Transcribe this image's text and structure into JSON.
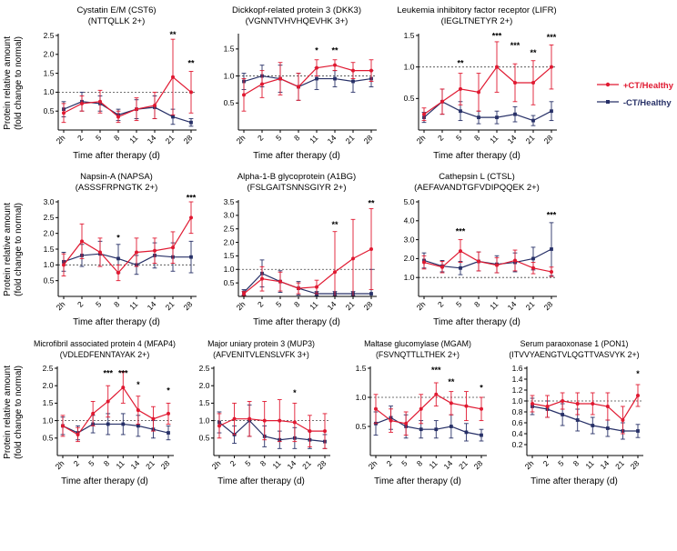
{
  "figure": {
    "ylabel_line1": "Protein relative amount",
    "ylabel_line2": "(fold change to normal)",
    "xlabel": "Time after therapy (d)",
    "categories": [
      "2h",
      "2",
      "5",
      "8",
      "11",
      "14",
      "21",
      "28"
    ],
    "colors": {
      "ct_plus": "#e01931",
      "ct_minus": "#273067",
      "axis": "#000000",
      "dashed_line": "#444444"
    },
    "legend": [
      {
        "label": "+CT/Healthy",
        "color": "#e01931",
        "marker": "circle"
      },
      {
        "label": "-CT/Healthy",
        "color": "#273067",
        "marker": "square"
      }
    ]
  },
  "chart_data": [
    {
      "type": "line",
      "title": "Cystatin E/M (CST6)",
      "subtitle": "(NTTQLLK 2+)",
      "categories": [
        "2h",
        "2",
        "5",
        "8",
        "11",
        "14",
        "21",
        "28"
      ],
      "ylim": [
        0,
        2.5
      ],
      "yticks": [
        0.5,
        1.0,
        1.5,
        2.0,
        2.5
      ],
      "dashed_y": 1.0,
      "series": [
        {
          "name": "+CT/Healthy",
          "values": [
            0.45,
            0.7,
            0.75,
            0.35,
            0.55,
            0.65,
            1.4,
            1.0
          ],
          "err": [
            0.25,
            0.2,
            0.3,
            0.15,
            0.3,
            0.35,
            1.0,
            0.55
          ]
        },
        {
          "name": "-CT/Healthy",
          "values": [
            0.55,
            0.75,
            0.7,
            0.4,
            0.55,
            0.6,
            0.35,
            0.2
          ],
          "err": [
            0.2,
            0.25,
            0.2,
            0.15,
            0.25,
            0.3,
            0.2,
            0.1
          ]
        }
      ],
      "annotations": [
        {
          "i": 6,
          "text": "**",
          "y": 2.45
        },
        {
          "i": 7,
          "text": "**",
          "y": 1.7
        }
      ]
    },
    {
      "type": "line",
      "title": "Dickkopf-related protein 3 (DKK3)",
      "subtitle": "(VGNNTVHVHQEVHK 3+)",
      "categories": [
        "2h",
        "2",
        "5",
        "8",
        "11",
        "14",
        "21",
        "28"
      ],
      "ylim": [
        0,
        1.75
      ],
      "yticks": [
        0.5,
        1.0,
        1.5
      ],
      "dashed_y": 1.0,
      "series": [
        {
          "name": "+CT/Healthy",
          "values": [
            0.65,
            0.85,
            0.95,
            0.8,
            1.15,
            1.2,
            1.1,
            1.1
          ],
          "err": [
            0.3,
            0.25,
            0.3,
            0.25,
            0.15,
            0.1,
            0.15,
            0.2
          ]
        },
        {
          "name": "-CT/Healthy",
          "values": [
            0.9,
            1.0,
            0.95,
            0.8,
            0.95,
            0.95,
            0.9,
            0.95
          ],
          "err": [
            0.15,
            0.2,
            0.25,
            0.25,
            0.2,
            0.15,
            0.2,
            0.15
          ]
        }
      ],
      "annotations": [
        {
          "i": 4,
          "text": "*",
          "y": 1.42
        },
        {
          "i": 5,
          "text": "**",
          "y": 1.42
        }
      ]
    },
    {
      "type": "line",
      "title": "Leukemia inhibitory factor receptor (LIFR)",
      "subtitle": "(IEGLTNETYR 2+)",
      "categories": [
        "2h",
        "2",
        "5",
        "8",
        "11",
        "14",
        "21",
        "28"
      ],
      "ylim": [
        0,
        1.5
      ],
      "yticks": [
        0.5,
        1.0,
        1.5
      ],
      "dashed_y": 1.0,
      "series": [
        {
          "name": "+CT/Healthy",
          "values": [
            0.25,
            0.45,
            0.65,
            0.6,
            1.0,
            0.75,
            0.75,
            1.0
          ],
          "err": [
            0.1,
            0.2,
            0.25,
            0.3,
            0.4,
            0.3,
            0.35,
            0.35
          ]
        },
        {
          "name": "-CT/Healthy",
          "values": [
            0.2,
            0.45,
            0.3,
            0.2,
            0.2,
            0.25,
            0.15,
            0.3
          ],
          "err": [
            0.08,
            0.2,
            0.15,
            0.1,
            0.1,
            0.12,
            0.08,
            0.15
          ]
        }
      ],
      "annotations": [
        {
          "i": 2,
          "text": "**",
          "y": 1.02
        },
        {
          "i": 4,
          "text": "***",
          "y": 1.45
        },
        {
          "i": 5,
          "text": "***",
          "y": 1.3
        },
        {
          "i": 6,
          "text": "**",
          "y": 1.18
        },
        {
          "i": 7,
          "text": "***",
          "y": 1.43
        }
      ]
    },
    {
      "type": "line",
      "title": "Napsin-A (NAPSA)",
      "subtitle": "(ASSSFRPNGTK 2+)",
      "categories": [
        "2h",
        "2",
        "5",
        "8",
        "11",
        "14",
        "21",
        "28"
      ],
      "ylim": [
        0,
        3.0
      ],
      "yticks": [
        0.5,
        1.0,
        1.5,
        2.0,
        2.5,
        3.0
      ],
      "dashed_y": 1.0,
      "series": [
        {
          "name": "+CT/Healthy",
          "values": [
            1.0,
            1.75,
            1.4,
            0.75,
            1.4,
            1.45,
            1.55,
            2.5
          ],
          "err": [
            0.35,
            0.55,
            0.45,
            0.25,
            0.45,
            0.4,
            0.5,
            0.5
          ]
        },
        {
          "name": "-CT/Healthy",
          "values": [
            1.1,
            1.3,
            1.35,
            1.2,
            1.0,
            1.3,
            1.25,
            1.25
          ],
          "err": [
            0.3,
            0.35,
            0.4,
            0.45,
            0.3,
            0.4,
            0.45,
            0.5
          ]
        }
      ],
      "annotations": [
        {
          "i": 3,
          "text": "*",
          "y": 1.78
        },
        {
          "i": 7,
          "text": "***",
          "y": 3.05
        }
      ]
    },
    {
      "type": "line",
      "title": "Alpha-1-B glycoprotein (A1BG)",
      "subtitle": "(FSLGAITSNNSGIYR 2+)",
      "categories": [
        "2h",
        "2",
        "5",
        "8",
        "11",
        "14",
        "21",
        "28"
      ],
      "ylim": [
        0,
        3.5
      ],
      "yticks": [
        0.5,
        1.0,
        1.5,
        2.0,
        2.5,
        3.0,
        3.5
      ],
      "dashed_y": 1.0,
      "series": [
        {
          "name": "+CT/Healthy",
          "values": [
            0.1,
            0.65,
            0.55,
            0.3,
            0.35,
            0.9,
            1.4,
            1.75
          ],
          "err": [
            0.08,
            0.45,
            0.35,
            0.2,
            0.25,
            1.5,
            1.45,
            1.5
          ]
        },
        {
          "name": "-CT/Healthy",
          "values": [
            0.15,
            0.85,
            0.55,
            0.3,
            0.1,
            0.1,
            0.1,
            0.1
          ],
          "err": [
            0.1,
            0.5,
            0.4,
            0.25,
            0.08,
            0.08,
            0.08,
            0.9
          ]
        }
      ],
      "annotations": [
        {
          "i": 5,
          "text": "**",
          "y": 2.55
        },
        {
          "i": 7,
          "text": "**",
          "y": 3.35
        }
      ]
    },
    {
      "type": "line",
      "title": "Cathepsin L (CTSL)",
      "subtitle": "(AEFAVANDTGFVDIPQQEK 2+)",
      "categories": [
        "2h",
        "2",
        "5",
        "8",
        "11",
        "14",
        "21",
        "28"
      ],
      "ylim": [
        0,
        5.0
      ],
      "yticks": [
        1.0,
        2.0,
        3.0,
        4.0,
        5.0
      ],
      "dashed_y": 1.0,
      "series": [
        {
          "name": "+CT/Healthy",
          "values": [
            1.8,
            1.55,
            2.4,
            1.85,
            1.65,
            1.9,
            1.5,
            1.3
          ],
          "err": [
            0.35,
            0.3,
            0.6,
            0.5,
            0.4,
            0.55,
            0.3,
            0.25
          ]
        },
        {
          "name": "-CT/Healthy",
          "values": [
            1.9,
            1.6,
            1.5,
            1.85,
            1.7,
            1.8,
            2.0,
            2.5
          ],
          "err": [
            0.4,
            0.3,
            0.35,
            0.5,
            0.45,
            0.5,
            0.6,
            1.4
          ]
        }
      ],
      "annotations": [
        {
          "i": 2,
          "text": "***",
          "y": 3.3
        },
        {
          "i": 7,
          "text": "***",
          "y": 4.15
        }
      ]
    },
    {
      "type": "line",
      "title": "Microfibril associated protein 4 (MFAP4)",
      "subtitle": "(VDLEDFENNTAYAK 2+)",
      "categories": [
        "2h",
        "2",
        "5",
        "8",
        "11",
        "14",
        "21",
        "28"
      ],
      "ylim": [
        0,
        2.5
      ],
      "yticks": [
        0.5,
        1.0,
        1.5,
        2.0,
        2.5
      ],
      "dashed_y": 1.0,
      "series": [
        {
          "name": "+CT/Healthy",
          "values": [
            0.85,
            0.6,
            1.2,
            1.55,
            1.95,
            1.3,
            1.05,
            1.2
          ],
          "err": [
            0.3,
            0.2,
            0.35,
            0.45,
            0.45,
            0.4,
            0.35,
            0.3
          ]
        },
        {
          "name": "-CT/Healthy",
          "values": [
            0.85,
            0.65,
            0.9,
            0.9,
            0.9,
            0.85,
            0.75,
            0.65
          ],
          "err": [
            0.25,
            0.2,
            0.25,
            0.3,
            0.3,
            0.3,
            0.25,
            0.2
          ]
        }
      ],
      "annotations": [
        {
          "i": 3,
          "text": "***",
          "y": 2.28
        },
        {
          "i": 4,
          "text": "***",
          "y": 2.28
        },
        {
          "i": 5,
          "text": "*",
          "y": 1.95
        },
        {
          "i": 7,
          "text": "*",
          "y": 1.78
        }
      ]
    },
    {
      "type": "line",
      "title": "Major uniary protein 3 (MUP3)",
      "subtitle": "(AFVENITVLENSLVFK 3+)",
      "categories": [
        "2h",
        "2",
        "5",
        "8",
        "11",
        "14",
        "21",
        "28"
      ],
      "ylim": [
        0,
        2.5
      ],
      "yticks": [
        0.5,
        1.0,
        1.5,
        2.0,
        2.5
      ],
      "dashed_y": 1.0,
      "series": [
        {
          "name": "+CT/Healthy",
          "values": [
            0.85,
            1.05,
            1.05,
            1.0,
            1.0,
            0.95,
            0.7,
            0.7
          ],
          "err": [
            0.35,
            0.45,
            0.5,
            0.55,
            0.6,
            0.55,
            0.45,
            0.5
          ]
        },
        {
          "name": "-CT/Healthy",
          "values": [
            0.95,
            0.6,
            1.0,
            0.55,
            0.45,
            0.5,
            0.45,
            0.4
          ],
          "err": [
            0.3,
            0.25,
            0.45,
            0.3,
            0.25,
            0.3,
            0.25,
            0.2
          ]
        }
      ],
      "annotations": [
        {
          "i": 5,
          "text": "*",
          "y": 1.72
        }
      ]
    },
    {
      "type": "line",
      "title": "Maltase glucomylase (MGAM)",
      "subtitle": "(FSVNQTTLLTHEK 2+)",
      "categories": [
        "2h",
        "2",
        "5",
        "8",
        "11",
        "14",
        "21",
        "28"
      ],
      "ylim": [
        0,
        1.5
      ],
      "yticks": [
        0.5,
        1.0,
        1.5
      ],
      "dashed_y": 1.0,
      "series": [
        {
          "name": "+CT/Healthy",
          "values": [
            0.8,
            0.6,
            0.55,
            0.8,
            1.05,
            0.9,
            0.85,
            0.8
          ],
          "err": [
            0.25,
            0.2,
            0.2,
            0.25,
            0.2,
            0.2,
            0.25,
            0.2
          ]
        },
        {
          "name": "-CT/Healthy",
          "values": [
            0.55,
            0.65,
            0.5,
            0.45,
            0.45,
            0.5,
            0.4,
            0.35
          ],
          "err": [
            0.2,
            0.2,
            0.2,
            0.15,
            0.15,
            0.2,
            0.15,
            0.1
          ]
        }
      ],
      "annotations": [
        {
          "i": 4,
          "text": "***",
          "y": 1.42
        },
        {
          "i": 5,
          "text": "**",
          "y": 1.22
        },
        {
          "i": 7,
          "text": "*",
          "y": 1.12
        }
      ]
    },
    {
      "type": "line",
      "title": "Serum paraoxonase 1 (PON1)",
      "subtitle": "(ITVVYAENGTVLQGTTVASVYK 2+)",
      "categories": [
        "2h",
        "2",
        "5",
        "8",
        "11",
        "14",
        "21",
        "28"
      ],
      "ylim": [
        0,
        1.6
      ],
      "yticks": [
        0.2,
        0.4,
        0.6,
        0.8,
        1.0,
        1.2,
        1.4,
        1.6
      ],
      "dashed_y": 1.0,
      "series": [
        {
          "name": "+CT/Healthy",
          "values": [
            0.95,
            0.9,
            1.0,
            0.95,
            0.95,
            0.9,
            0.65,
            1.1
          ],
          "err": [
            0.15,
            0.2,
            0.15,
            0.2,
            0.2,
            0.25,
            0.25,
            0.2
          ]
        },
        {
          "name": "-CT/Healthy",
          "values": [
            0.9,
            0.85,
            0.75,
            0.65,
            0.55,
            0.5,
            0.45,
            0.45
          ],
          "err": [
            0.15,
            0.15,
            0.2,
            0.2,
            0.15,
            0.15,
            0.15,
            0.12
          ]
        }
      ],
      "annotations": [
        {
          "i": 7,
          "text": "*",
          "y": 1.45
        }
      ]
    }
  ]
}
